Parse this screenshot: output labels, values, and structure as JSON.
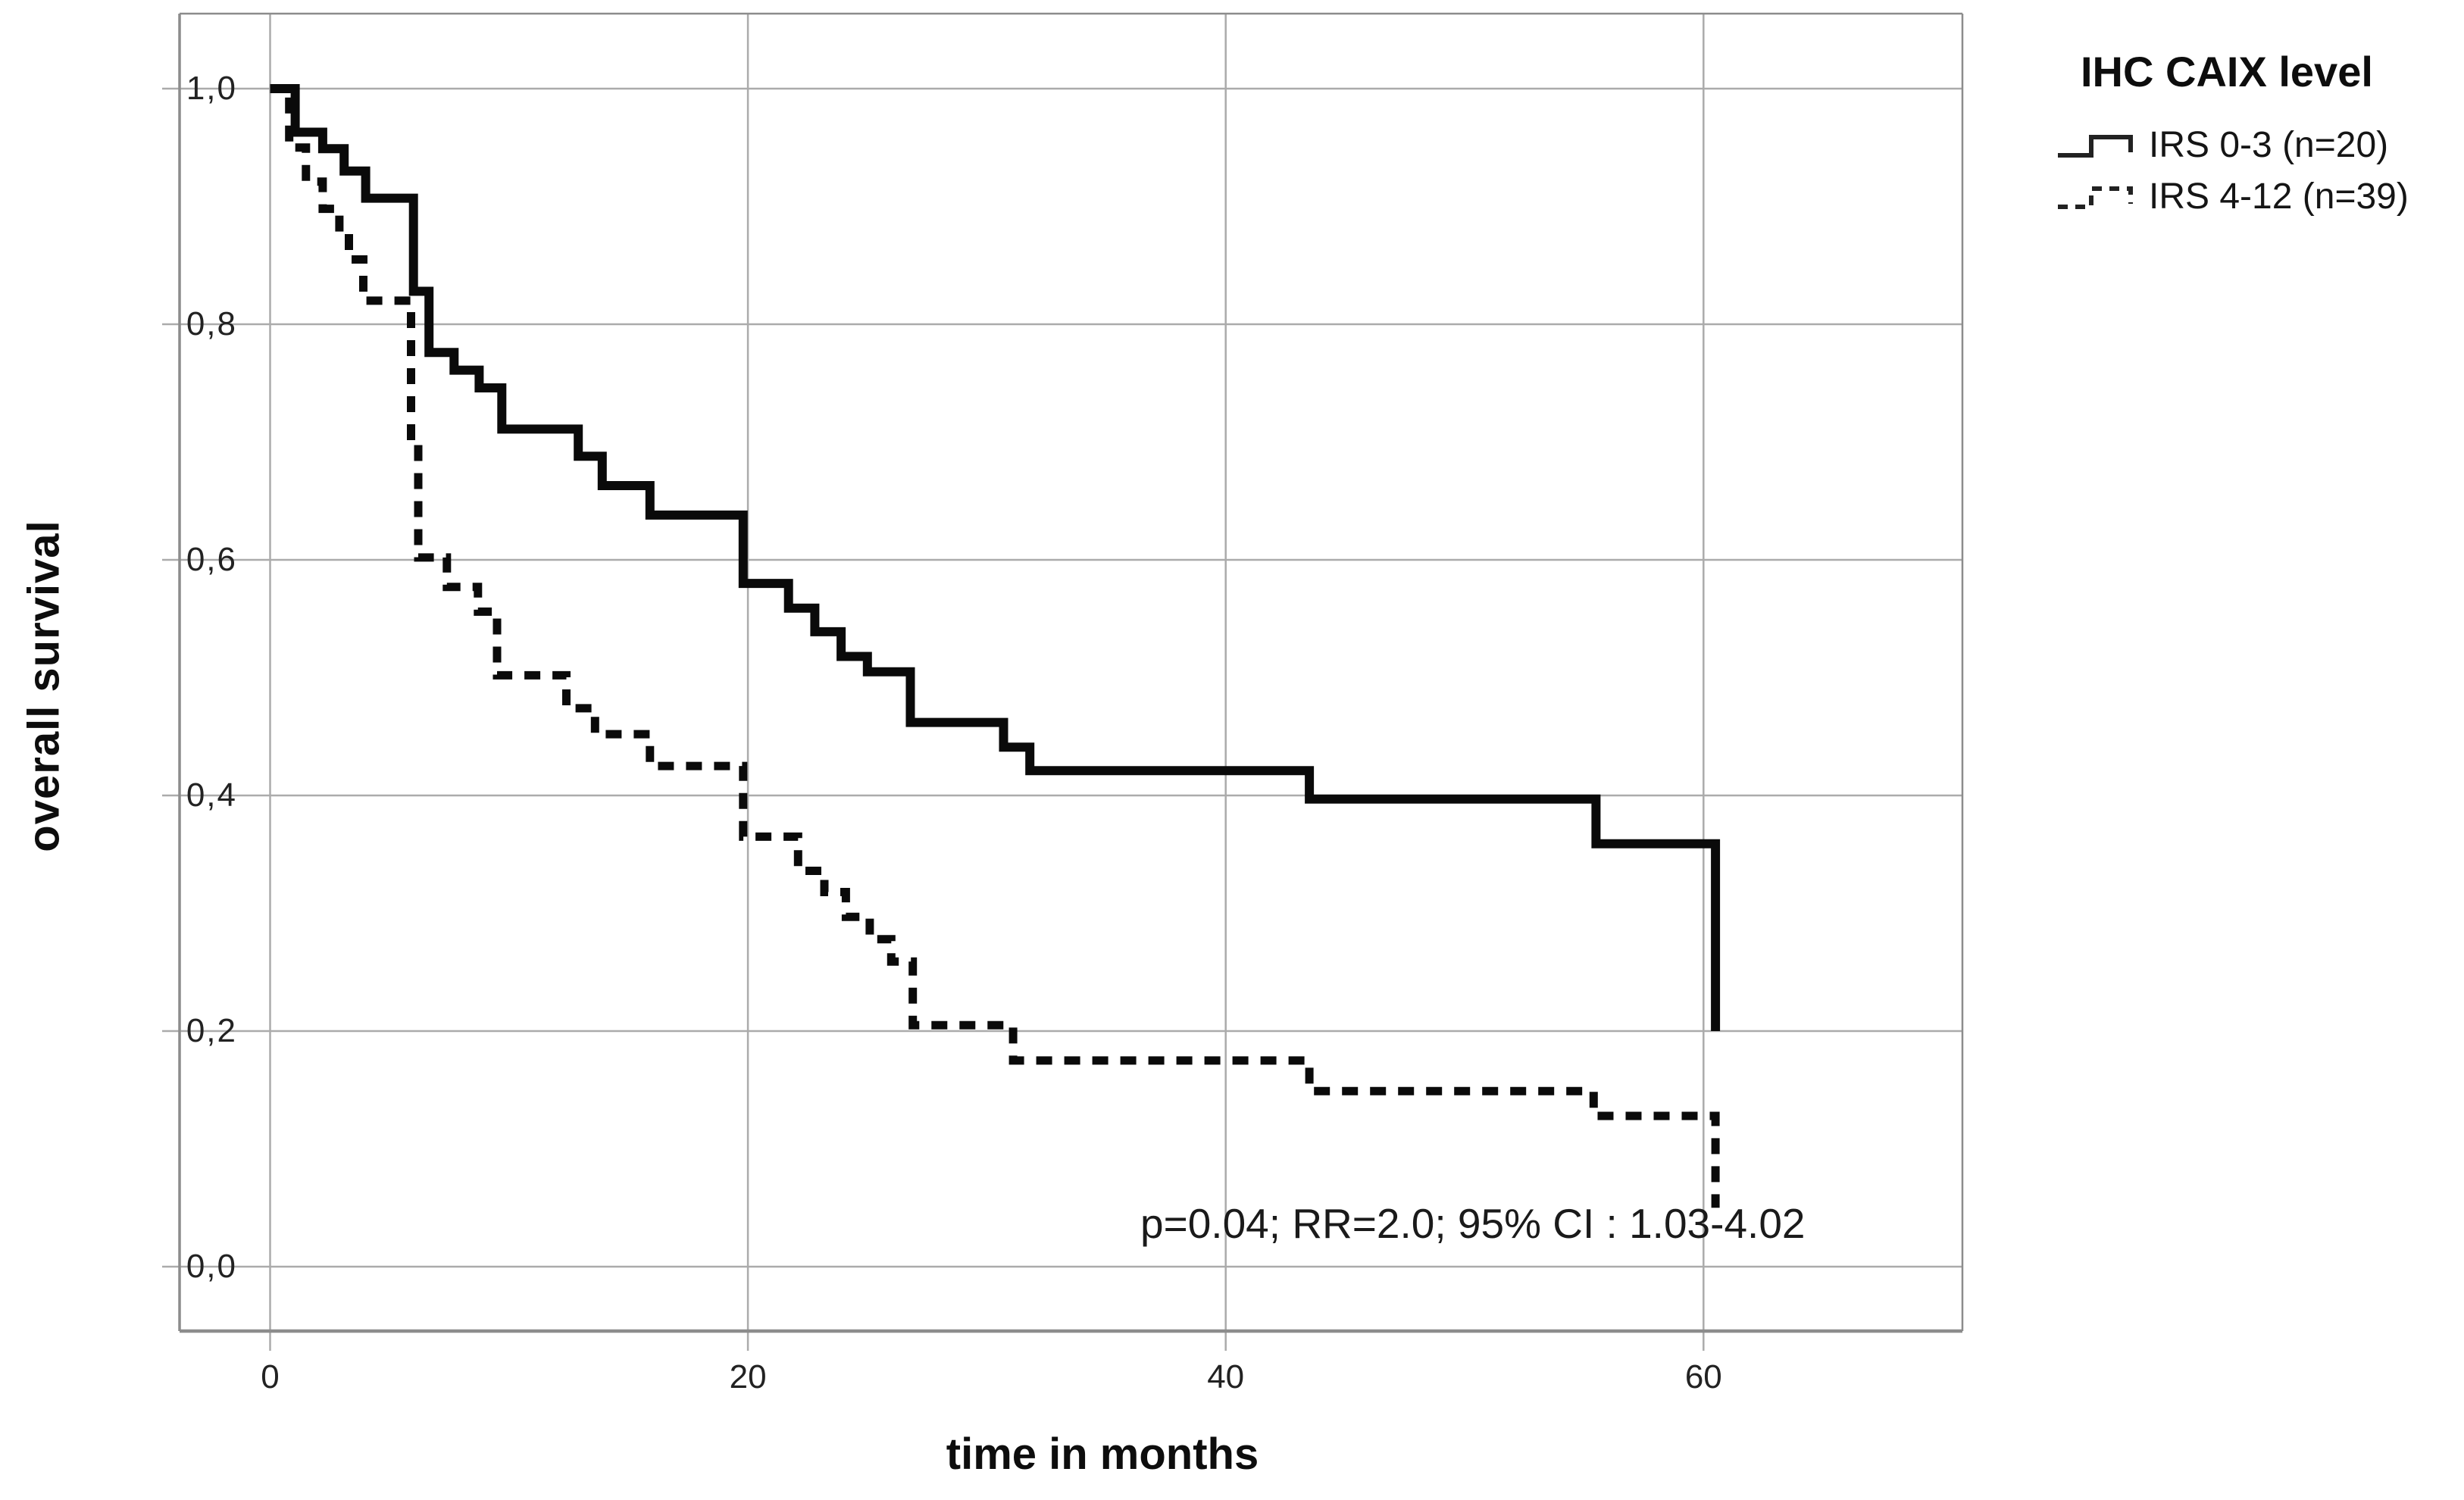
{
  "colors": {
    "curve": "#0a0a0a",
    "grid": "#ababab",
    "frame": "#8c8c8c",
    "text": "#1a1a1a",
    "background": "#ffffff"
  },
  "axes": {
    "x_title": "time in months",
    "y_title": "overall survival"
  },
  "legend": {
    "title": "IHC CAIX level",
    "entries": [
      {
        "label": "IRS 0-3 (n=20)",
        "style": "solid"
      },
      {
        "label": "IRS 4-12 (n=39)",
        "style": "dashed"
      }
    ]
  },
  "annotation": {
    "text": "p=0.04; RR=2.0; 95% CI : 1.03-4.02"
  },
  "chart_data": {
    "type": "line",
    "subtype": "kaplan-meier-step",
    "title": "",
    "xlabel": "time in months",
    "ylabel": "overall survival",
    "xlim": [
      -3.8,
      70.8
    ],
    "ylim": [
      -0.055,
      1.065
    ],
    "x_ticks": [
      0,
      20,
      40,
      60
    ],
    "x_tick_labels": [
      "0",
      "20",
      "40",
      "60"
    ],
    "y_ticks": [
      0.0,
      0.2,
      0.4,
      0.6,
      0.8,
      1.0
    ],
    "y_tick_labels": [
      "0,0",
      "0,2",
      "0,4",
      "0,6",
      "0,8",
      "1,0"
    ],
    "grid": true,
    "legend_position": "top-right-outside",
    "legend_title": "IHC CAIX level",
    "annotation": "p=0.04; RR=2.0; 95% CI : 1.03-4.02",
    "series": [
      {
        "name": "IRS 0-3 (n=20)",
        "style": "solid",
        "color": "#0a0a0a",
        "points": [
          [
            0,
            1.0
          ],
          [
            1.05,
            0.963
          ],
          [
            2.2,
            0.949
          ],
          [
            3.1,
            0.93
          ],
          [
            4.0,
            0.907
          ],
          [
            6.0,
            0.828
          ],
          [
            6.65,
            0.776
          ],
          [
            7.7,
            0.761
          ],
          [
            8.75,
            0.746
          ],
          [
            9.7,
            0.711
          ],
          [
            12.9,
            0.688
          ],
          [
            13.9,
            0.663
          ],
          [
            15.9,
            0.638
          ],
          [
            19.8,
            0.58
          ],
          [
            21.7,
            0.559
          ],
          [
            22.8,
            0.539
          ],
          [
            23.9,
            0.518
          ],
          [
            25.0,
            0.505
          ],
          [
            26.8,
            0.462
          ],
          [
            30.7,
            0.441
          ],
          [
            31.8,
            0.421
          ],
          [
            43.5,
            0.397
          ],
          [
            55.5,
            0.359
          ],
          [
            60.5,
            0.2
          ]
        ]
      },
      {
        "name": "IRS 4-12 (n=39)",
        "style": "dashed",
        "color": "#0a0a0a",
        "points": [
          [
            0,
            1.0
          ],
          [
            0.8,
            0.95
          ],
          [
            1.5,
            0.921
          ],
          [
            2.2,
            0.898
          ],
          [
            2.9,
            0.877
          ],
          [
            3.3,
            0.855
          ],
          [
            3.9,
            0.82
          ],
          [
            5.9,
            0.7
          ],
          [
            6.2,
            0.602
          ],
          [
            7.4,
            0.577
          ],
          [
            8.7,
            0.556
          ],
          [
            9.5,
            0.502
          ],
          [
            12.4,
            0.474
          ],
          [
            13.6,
            0.452
          ],
          [
            15.9,
            0.425
          ],
          [
            19.8,
            0.365
          ],
          [
            22.1,
            0.336
          ],
          [
            23.2,
            0.318
          ],
          [
            24.1,
            0.297
          ],
          [
            25.1,
            0.278
          ],
          [
            26.0,
            0.259
          ],
          [
            26.9,
            0.205
          ],
          [
            31.1,
            0.175
          ],
          [
            43.5,
            0.149
          ],
          [
            55.4,
            0.128
          ],
          [
            60.5,
            0.05
          ]
        ]
      }
    ]
  }
}
